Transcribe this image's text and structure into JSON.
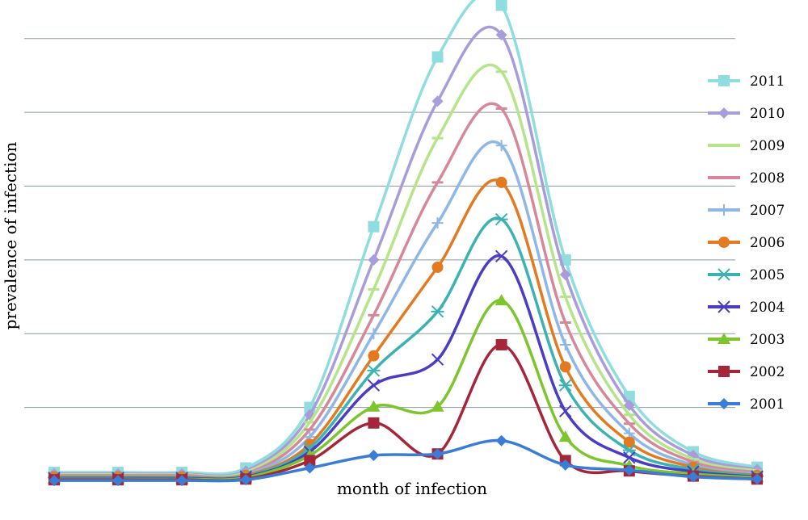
{
  "chart_data": {
    "type": "line",
    "smooth": true,
    "x": [
      1,
      2,
      3,
      4,
      5,
      6,
      7,
      8,
      9,
      10,
      11,
      12
    ],
    "xlabel": "month of infection",
    "ylabel": "prevalence of infection",
    "ylim": [
      0,
      6.5
    ],
    "tick_labels_visible": false,
    "grid": "horizontal",
    "legend_position": "right",
    "series": [
      {
        "name": "2001",
        "color": "#3A7DD8",
        "marker": "diamond",
        "values": [
          0.01,
          0.01,
          0.01,
          0.02,
          0.18,
          0.35,
          0.37,
          0.55,
          0.22,
          0.15,
          0.06,
          0.03
        ]
      },
      {
        "name": "2002",
        "color": "#A62639",
        "marker": "square",
        "values": [
          0.02,
          0.02,
          0.02,
          0.03,
          0.28,
          0.79,
          0.37,
          1.85,
          0.28,
          0.14,
          0.07,
          0.03
        ]
      },
      {
        "name": "2003",
        "color": "#7DC52D",
        "marker": "triangle",
        "values": [
          0.03,
          0.03,
          0.03,
          0.05,
          0.35,
          1.01,
          1.01,
          2.45,
          0.6,
          0.21,
          0.1,
          0.05
        ]
      },
      {
        "name": "2004",
        "color": "#4A3CC5",
        "marker": "x",
        "values": [
          0.04,
          0.04,
          0.04,
          0.06,
          0.4,
          1.3,
          1.65,
          3.05,
          0.95,
          0.32,
          0.13,
          0.06
        ]
      },
      {
        "name": "2005",
        "color": "#3BB3B3",
        "marker": "asterisk",
        "values": [
          0.05,
          0.05,
          0.05,
          0.07,
          0.45,
          1.5,
          2.3,
          3.55,
          1.3,
          0.42,
          0.16,
          0.07
        ]
      },
      {
        "name": "2006",
        "color": "#E47A1F",
        "marker": "circle",
        "values": [
          0.06,
          0.06,
          0.06,
          0.08,
          0.5,
          1.7,
          2.9,
          4.05,
          1.55,
          0.53,
          0.19,
          0.08
        ]
      },
      {
        "name": "2007",
        "color": "#8EB7E8",
        "marker": "plus",
        "values": [
          0.07,
          0.07,
          0.07,
          0.09,
          0.6,
          2.0,
          3.5,
          4.55,
          1.85,
          0.65,
          0.22,
          0.1
        ]
      },
      {
        "name": "2008",
        "color": "#D5889A",
        "marker": "dash",
        "values": [
          0.08,
          0.08,
          0.08,
          0.1,
          0.7,
          2.25,
          4.05,
          5.05,
          2.15,
          0.78,
          0.26,
          0.12
        ]
      },
      {
        "name": "2009",
        "color": "#B5E58A",
        "marker": "dash",
        "values": [
          0.09,
          0.09,
          0.09,
          0.12,
          0.8,
          2.6,
          4.65,
          5.55,
          2.5,
          0.9,
          0.3,
          0.14
        ]
      },
      {
        "name": "2010",
        "color": "#A99CDA",
        "marker": "diamond",
        "values": [
          0.1,
          0.1,
          0.1,
          0.14,
          0.9,
          3.0,
          5.15,
          6.05,
          2.8,
          1.03,
          0.35,
          0.16
        ]
      },
      {
        "name": "2011",
        "color": "#8FDDDE",
        "marker": "square",
        "values": [
          0.12,
          0.12,
          0.12,
          0.18,
          1.0,
          3.45,
          5.75,
          6.45,
          3.0,
          1.15,
          0.4,
          0.19
        ]
      }
    ]
  }
}
